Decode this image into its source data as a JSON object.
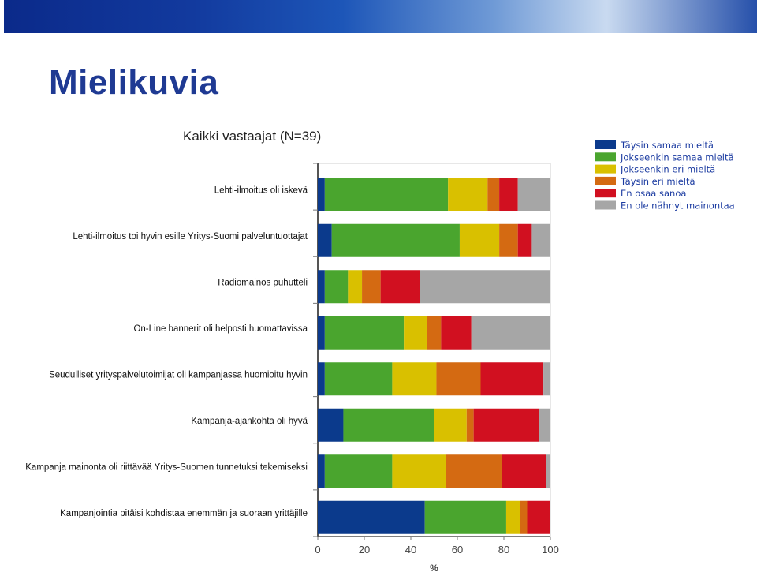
{
  "header": {
    "title": "Mielikuvia"
  },
  "chart_data": {
    "type": "bar",
    "orientation": "horizontal",
    "stacked": true,
    "title": "Kaikki vastaajat (N=39)",
    "xlabel": "%",
    "ylabel": "",
    "xlim": [
      0,
      100
    ],
    "xticks": [
      "0",
      "20",
      "40",
      "60",
      "80",
      "100"
    ],
    "legend_position": "top-right",
    "grid": false,
    "categories": [
      "Lehti-ilmoitus oli iskevä",
      "Lehti-ilmoitus toi hyvin esille Yritys-Suomi palveluntuottajat",
      "Radiomainos puhutteli",
      "On-Line bannerit oli helposti huomattavissa",
      "Seudulliset yrityspalvelutoimijat oli kampanjassa huomioitu hyvin",
      "Kampanja-ajankohta oli hyvä",
      "Kampanja mainonta oli riittävää Yritys-Suomen tunnetuksi tekemiseksi",
      "Kampanjointia pitäisi kohdistaa enemmän ja suoraan yrittäjille"
    ],
    "series": [
      {
        "name": "Täysin samaa mieltä",
        "color": "#0b3a8c",
        "values": [
          3,
          6,
          3,
          3,
          3,
          11,
          3,
          46
        ]
      },
      {
        "name": "Jokseenkin samaa mieltä",
        "color": "#4aa52e",
        "values": [
          53,
          55,
          10,
          34,
          29,
          39,
          29,
          35
        ]
      },
      {
        "name": "Jokseenkin eri mieltä",
        "color": "#d9c000",
        "values": [
          17,
          17,
          6,
          10,
          19,
          14,
          23,
          6
        ]
      },
      {
        "name": "Täysin eri mieltä",
        "color": "#d46a12",
        "values": [
          5,
          8,
          8,
          6,
          19,
          3,
          24,
          3
        ]
      },
      {
        "name": "En osaa sanoa",
        "color": "#d11020",
        "values": [
          8,
          6,
          17,
          13,
          27,
          28,
          19,
          10
        ]
      },
      {
        "name": "En ole nähnyt mainontaa",
        "color": "#a6a6a6",
        "values": [
          14,
          8,
          56,
          34,
          3,
          5,
          2,
          0
        ]
      }
    ]
  }
}
